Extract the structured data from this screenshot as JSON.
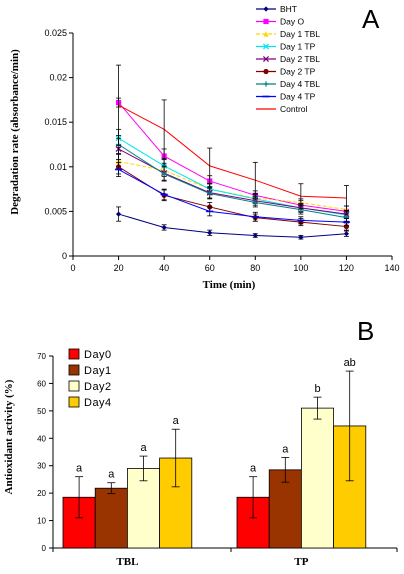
{
  "chart_data": [
    {
      "panel_label": "A",
      "type": "line",
      "title": "",
      "xlabel": "Time (min)",
      "ylabel": "Degradation rate (absorbance/min)",
      "xlim": [
        0,
        140
      ],
      "ylim": [
        0,
        0.025
      ],
      "x_ticks": [
        "0",
        "20",
        "40",
        "60",
        "80",
        "100",
        "120",
        "140"
      ],
      "y_ticks": [
        "0",
        "0.005",
        "0.01",
        "0.015",
        "0.02",
        "0.025"
      ],
      "x": [
        20,
        40,
        60,
        80,
        100,
        120
      ],
      "legend_position": "top-right",
      "grid": false,
      "series": [
        {
          "name": "BHT",
          "color": "#000080",
          "marker": "diamond",
          "values": [
            0.0047,
            0.0032,
            0.0026,
            0.0023,
            0.0021,
            0.0025
          ],
          "errors": [
            0.0008,
            0.0003,
            0.0003,
            0.0002,
            0.0002,
            0.0003
          ]
        },
        {
          "name": "Day O",
          "color": "#ff00ff",
          "marker": "square",
          "values": [
            0.0172,
            0.0112,
            0.0084,
            0.0068,
            0.0057,
            0.005
          ],
          "errors": [
            0.0005,
            0.0008,
            0.0006,
            0.0005,
            0.0005,
            0.0006
          ]
        },
        {
          "name": "Day 1 TBL",
          "color": "#ffd700",
          "marker": "triangle",
          "values": [
            0.0106,
            0.0096,
            0.0075,
            0.0065,
            0.006,
            0.0052
          ],
          "errors": [
            0.0008,
            0.0007,
            0.0006,
            0.0005,
            0.0004,
            0.0004
          ]
        },
        {
          "name": "Day 1 TP",
          "color": "#00e5ee",
          "marker": "x",
          "values": [
            0.0132,
            0.0101,
            0.0075,
            0.0064,
            0.0054,
            0.0046
          ],
          "errors": [
            0.001,
            0.0007,
            0.0006,
            0.0005,
            0.0004,
            0.0004
          ]
        },
        {
          "name": "Day 2 TBL",
          "color": "#800080",
          "marker": "x",
          "values": [
            0.012,
            0.0093,
            0.0071,
            0.0062,
            0.0054,
            0.0047
          ],
          "errors": [
            0.0012,
            0.0008,
            0.0006,
            0.0005,
            0.0005,
            0.0004
          ]
        },
        {
          "name": "Day 2 TP",
          "color": "#800000",
          "marker": "circle",
          "values": [
            0.01,
            0.0068,
            0.0055,
            0.0043,
            0.0038,
            0.0033
          ],
          "errors": [
            0.0008,
            0.0006,
            0.0005,
            0.0004,
            0.0004,
            0.0004
          ]
        },
        {
          "name": "Day 4 TBL",
          "color": "#008080",
          "marker": "plus",
          "values": [
            0.0125,
            0.0092,
            0.007,
            0.006,
            0.0052,
            0.0043
          ],
          "errors": [
            0.001,
            0.0008,
            0.0006,
            0.0005,
            0.0005,
            0.0004
          ]
        },
        {
          "name": "Day 4 TP",
          "color": "#0000ff",
          "marker": "dash",
          "values": [
            0.0097,
            0.0069,
            0.005,
            0.0044,
            0.004,
            0.0038
          ],
          "errors": [
            0.0008,
            0.0006,
            0.0005,
            0.0005,
            0.0004,
            0.0004
          ]
        },
        {
          "name": "Control",
          "color": "#ff0000",
          "marker": "none",
          "values": [
            0.0169,
            0.0142,
            0.0101,
            0.0085,
            0.0067,
            0.0065
          ],
          "errors": [
            0.0045,
            0.0033,
            0.002,
            0.002,
            0.0014,
            0.0014
          ]
        }
      ]
    },
    {
      "panel_label": "B",
      "type": "bar",
      "title": "",
      "xlabel": "",
      "ylabel": "Antioxidant activity (%)",
      "ylim": [
        0,
        70
      ],
      "y_ticks": [
        "0",
        "10",
        "20",
        "30",
        "40",
        "50",
        "60",
        "70"
      ],
      "categories": [
        "TBL",
        "TP"
      ],
      "legend_position": "top-left",
      "grid": false,
      "series": [
        {
          "name": "Day0",
          "color": "#ff0000",
          "values": [
            18.5,
            18.5
          ],
          "errors": [
            7.5,
            7.5
          ],
          "labels": [
            "a",
            "a"
          ]
        },
        {
          "name": "Day1",
          "color": "#993300",
          "values": [
            21.8,
            28.5
          ],
          "errors": [
            2.0,
            4.5
          ],
          "labels": [
            "a",
            "a"
          ]
        },
        {
          "name": "Day2",
          "color": "#ffffcc",
          "values": [
            29.0,
            51.0
          ],
          "errors": [
            4.5,
            4.0
          ],
          "labels": [
            "a",
            "b"
          ]
        },
        {
          "name": "Day4",
          "color": "#ffcc00",
          "values": [
            32.8,
            44.5
          ],
          "errors": [
            10.5,
            20.0
          ],
          "labels": [
            "a",
            "ab"
          ]
        }
      ]
    }
  ]
}
